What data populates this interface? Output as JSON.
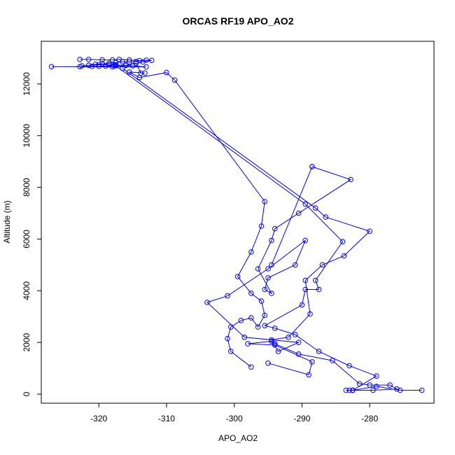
{
  "chart_data": {
    "type": "scatter",
    "title": "ORCAS RF19 APO_AO2",
    "xlabel": "APO_AO2",
    "ylabel": "Altitude (m)",
    "xlim": [
      -328.5,
      -270.5
    ],
    "ylim": [
      -350,
      13650
    ],
    "xticks": [
      -320,
      -310,
      -300,
      -290,
      -280
    ],
    "xtick_labels": [
      "-320",
      "-310",
      "-300",
      "-290",
      "-280"
    ],
    "yticks": [
      0,
      2000,
      4000,
      6000,
      8000,
      10000,
      12000
    ],
    "ytick_labels": [
      "0",
      "2000",
      "4000",
      "6000",
      "8000",
      "10000",
      "12000"
    ],
    "grid": false,
    "legend": "none",
    "colors": {
      "series": "#0000ff",
      "axis": "#000000"
    },
    "series": [
      {
        "style": "line+points",
        "points": [
          [
            -322.8,
            12950
          ],
          [
            -321.5,
            12950
          ],
          [
            -319.5,
            12930
          ],
          [
            -318.0,
            12930
          ],
          [
            -317.0,
            12950
          ],
          [
            -315.5,
            12930
          ],
          [
            -314.0,
            12900
          ],
          [
            -313.0,
            12920
          ],
          [
            -312.2,
            12910
          ],
          [
            -313.5,
            12850
          ],
          [
            -314.5,
            12870
          ],
          [
            -315.5,
            12850
          ],
          [
            -316.5,
            12860
          ],
          [
            -317.5,
            12830
          ],
          [
            -318.5,
            12800
          ],
          [
            -319.5,
            12780
          ],
          [
            -320.5,
            12760
          ],
          [
            -321.5,
            12720
          ],
          [
            -322.5,
            12700
          ],
          [
            -320.0,
            12750
          ],
          [
            -318.5,
            12740
          ],
          [
            -317.5,
            12730
          ],
          [
            -316.0,
            12720
          ],
          [
            -315.0,
            12700
          ],
          [
            -317.8,
            12700
          ],
          [
            -319.0,
            12690
          ],
          [
            -320.0,
            12680
          ],
          [
            -321.0,
            12680
          ],
          [
            -322.8,
            12670
          ],
          [
            -327.0,
            12670
          ],
          [
            -318.0,
            12660
          ],
          [
            -313.0,
            12660
          ],
          [
            -316.0,
            12720
          ],
          [
            -314.5,
            12800
          ],
          [
            -313.8,
            12420
          ],
          [
            -313.2,
            12420
          ],
          [
            -315.5,
            12460
          ],
          [
            -314.0,
            12250
          ],
          [
            -310.0,
            12440
          ],
          [
            -308.8,
            12150
          ],
          [
            -295.5,
            7450
          ],
          [
            -296.0,
            6500
          ],
          [
            -297.5,
            5500
          ],
          [
            -299.5,
            4550
          ],
          [
            -297.5,
            3900
          ],
          [
            -296.0,
            3600
          ],
          [
            -295.5,
            3050
          ],
          [
            -296.5,
            2600
          ],
          [
            -297.5,
            2950
          ],
          [
            -299.0,
            2850
          ],
          [
            -300.5,
            2600
          ],
          [
            -301.0,
            2150
          ],
          [
            -300.5,
            1650
          ],
          [
            -297.5,
            1050
          ]
        ]
      },
      {
        "style": "line+points",
        "points": [
          [
            -317.5,
            12700
          ],
          [
            -289.5,
            7350
          ],
          [
            -284.0,
            5900
          ],
          [
            -288.0,
            4400
          ],
          [
            -287.5,
            4050
          ],
          [
            -289.5,
            4050
          ],
          [
            -290.0,
            3450
          ],
          [
            -295.5,
            2650
          ],
          [
            -294.0,
            2550
          ],
          [
            -291.0,
            2300
          ],
          [
            -287.5,
            1650
          ],
          [
            -283.0,
            1100
          ],
          [
            -279.0,
            700
          ],
          [
            -282.5,
            150
          ],
          [
            -283.5,
            150
          ],
          [
            -283.0,
            150
          ],
          [
            -282.5,
            150
          ],
          [
            -279.0,
            300
          ],
          [
            -275.5,
            150
          ],
          [
            -272.3,
            150
          ]
        ]
      },
      {
        "style": "line+points",
        "points": [
          [
            -316.5,
            12600
          ],
          [
            -288.0,
            7200
          ],
          [
            -286.5,
            6850
          ],
          [
            -280.0,
            6300
          ],
          [
            -283.8,
            5350
          ],
          [
            -287.0,
            5000
          ],
          [
            -289.5,
            4400
          ],
          [
            -288.8,
            3100
          ],
          [
            -292.0,
            2200
          ],
          [
            -294.5,
            2100
          ],
          [
            -294.0,
            1950
          ],
          [
            -290.5,
            1550
          ],
          [
            -285.5,
            1300
          ],
          [
            -281.5,
            400
          ],
          [
            -280.0,
            350
          ],
          [
            -277.0,
            350
          ],
          [
            -276.0,
            200
          ],
          [
            -279.5,
            150
          ],
          [
            -282.5,
            150
          ]
        ]
      },
      {
        "style": "line+points",
        "points": [
          [
            -288.5,
            8800
          ],
          [
            -282.8,
            8300
          ],
          [
            -290.5,
            7000
          ],
          [
            -294.0,
            6400
          ],
          [
            -294.5,
            5950
          ],
          [
            -296.5,
            4850
          ],
          [
            -294.5,
            3900
          ],
          [
            -295.5,
            4050
          ],
          [
            -295.0,
            4500
          ],
          [
            -291.0,
            5000
          ],
          [
            -289.5,
            5950
          ],
          [
            -295.0,
            4850
          ],
          [
            -301.0,
            3800
          ],
          [
            -304.0,
            3550
          ],
          [
            -298.5,
            2200
          ],
          [
            -290.5,
            2000
          ],
          [
            -293.5,
            1650
          ],
          [
            -294.5,
            2050
          ],
          [
            -298.0,
            1950
          ],
          [
            -294.0,
            1900
          ],
          [
            -288.5,
            1250
          ],
          [
            -289.0,
            750
          ],
          [
            -295.0,
            1200
          ]
        ]
      },
      {
        "style": "line+points",
        "points": [
          [
            -288.5,
            8800
          ],
          [
            -294.5,
            5000
          ]
        ]
      }
    ]
  }
}
